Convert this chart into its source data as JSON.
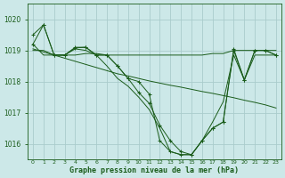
{
  "xlabel": "Graphe pression niveau de la mer (hPa)",
  "background_color": "#cce8e8",
  "grid_color": "#aacccc",
  "line_color": "#1a5c1a",
  "y_min": 1015.5,
  "y_max": 1020.5,
  "x_min": -0.5,
  "x_max": 23.5,
  "yticks": [
    1016,
    1017,
    1018,
    1019,
    1020
  ],
  "xtick_labels": [
    "0",
    "1",
    "2",
    "3",
    "4",
    "5",
    "6",
    "7",
    "8",
    "9",
    "10",
    "11",
    "12",
    "13",
    "14",
    "15",
    "16",
    "17",
    "18",
    "19",
    "20",
    "21",
    "22",
    "23"
  ],
  "line_flat": [
    1019.0,
    1019.0,
    1018.85,
    1018.85,
    1018.85,
    1018.9,
    1018.9,
    1018.85,
    1018.85,
    1018.85,
    1018.85,
    1018.85,
    1018.85,
    1018.85,
    1018.85,
    1018.85,
    1018.85,
    1018.9,
    1018.9,
    1019.0,
    1019.0,
    1019.0,
    1019.0,
    1019.0
  ],
  "line_decline": [
    1019.05,
    1018.95,
    1018.85,
    1018.75,
    1018.65,
    1018.55,
    1018.45,
    1018.35,
    1018.25,
    1018.18,
    1018.1,
    1018.02,
    1017.95,
    1017.88,
    1017.82,
    1017.75,
    1017.68,
    1017.62,
    1017.55,
    1017.48,
    1017.4,
    1017.33,
    1017.25,
    1017.15
  ],
  "line_spike1": [
    1019.2,
    1019.82,
    1018.85,
    1018.85,
    1019.08,
    1019.1,
    1018.85,
    1018.85,
    1018.5,
    1018.1,
    1017.65,
    1017.3,
    1016.6,
    1016.1,
    1015.75,
    1015.65,
    1016.1,
    1016.5,
    1016.7,
    1019.05,
    1018.05,
    1019.0,
    1019.0,
    1018.85
  ],
  "line_spike2": [
    1019.5,
    1019.82,
    1018.85,
    1018.85,
    1019.1,
    1019.1,
    1018.85,
    1018.85,
    1018.5,
    1018.1,
    1018.0,
    1017.6,
    1016.1,
    1015.75,
    1015.65,
    1015.65,
    1016.1,
    1016.5,
    1016.7,
    1019.0,
    1018.05,
    1019.0,
    1019.0,
    1018.85
  ],
  "line_spike3": [
    1019.2,
    1018.85,
    1018.85,
    1018.85,
    1019.05,
    1019.0,
    1018.85,
    1018.5,
    1018.1,
    1017.85,
    1017.5,
    1017.1,
    1016.5,
    1015.75,
    1015.65,
    1015.65,
    1016.1,
    1016.7,
    1017.35,
    1018.85,
    1018.05,
    1018.85,
    1018.85,
    1018.85
  ],
  "markers_x": [
    0,
    1,
    2,
    3,
    4,
    5,
    6,
    7,
    8,
    9,
    10,
    11,
    12,
    13,
    14,
    15,
    16,
    17,
    18,
    19,
    20,
    21,
    22,
    23
  ],
  "markers_y": [
    1019.2,
    1019.82,
    1018.85,
    1018.85,
    1019.08,
    1019.1,
    1018.85,
    1018.85,
    1018.5,
    1018.1,
    1017.65,
    1017.3,
    1016.6,
    1016.1,
    1015.75,
    1015.65,
    1016.1,
    1016.5,
    1016.7,
    1019.05,
    1018.05,
    1019.0,
    1019.0,
    1018.85
  ]
}
